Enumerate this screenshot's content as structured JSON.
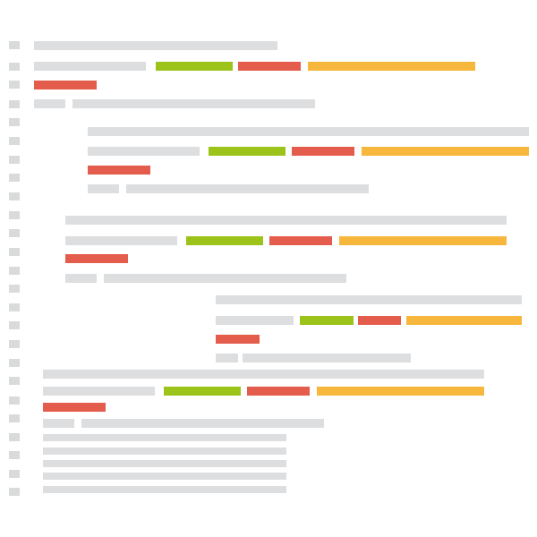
{
  "colors": {
    "gray": "#dddedf",
    "green": "#9bc31a",
    "red": "#e45c4b",
    "orange": "#f6b73c",
    "gutter": "#d9dadb"
  },
  "legend": [],
  "gutter": {
    "icon": "line-marker-icon",
    "count": 25
  },
  "blocks": [
    {
      "id": "block-1",
      "role": "code-block",
      "lines": [
        {
          "role": "text-line",
          "segments": [
            {
              "color": "gray"
            }
          ]
        },
        {
          "role": "token-line",
          "segments": [
            {
              "color": "gray"
            },
            {
              "color": "green"
            },
            {
              "color": "red"
            },
            {
              "color": "orange"
            }
          ]
        },
        {
          "role": "token-line",
          "segments": [
            {
              "color": "red"
            }
          ]
        },
        {
          "role": "text-line",
          "segments": [
            {
              "color": "gray"
            },
            {
              "color": "gray"
            }
          ]
        }
      ]
    },
    {
      "id": "block-2",
      "role": "nested-code-block",
      "lines": [
        {
          "role": "text-line",
          "segments": [
            {
              "color": "gray"
            }
          ]
        },
        {
          "role": "token-line",
          "segments": [
            {
              "color": "gray"
            },
            {
              "color": "green"
            },
            {
              "color": "red"
            },
            {
              "color": "orange"
            }
          ]
        },
        {
          "role": "token-line",
          "segments": [
            {
              "color": "red"
            }
          ]
        },
        {
          "role": "text-line",
          "segments": [
            {
              "color": "gray"
            },
            {
              "color": "gray"
            }
          ]
        }
      ]
    },
    {
      "id": "block-3",
      "role": "indented-code-block",
      "lines": [
        {
          "role": "text-line",
          "segments": [
            {
              "color": "gray"
            }
          ]
        },
        {
          "role": "token-line",
          "segments": [
            {
              "color": "gray"
            },
            {
              "color": "green"
            },
            {
              "color": "red"
            },
            {
              "color": "orange"
            }
          ]
        },
        {
          "role": "token-line",
          "segments": [
            {
              "color": "red"
            }
          ]
        },
        {
          "role": "text-line",
          "segments": [
            {
              "color": "gray"
            },
            {
              "color": "gray"
            }
          ]
        }
      ]
    },
    {
      "id": "block-4",
      "role": "deep-nested-code-block",
      "lines": [
        {
          "role": "text-line",
          "segments": [
            {
              "color": "gray"
            }
          ]
        },
        {
          "role": "token-line",
          "segments": [
            {
              "color": "gray"
            },
            {
              "color": "green"
            },
            {
              "color": "red"
            },
            {
              "color": "orange"
            }
          ]
        },
        {
          "role": "token-line",
          "segments": [
            {
              "color": "red"
            }
          ]
        },
        {
          "role": "text-line",
          "segments": [
            {
              "color": "gray"
            },
            {
              "color": "gray"
            }
          ]
        }
      ]
    },
    {
      "id": "block-5",
      "role": "code-block",
      "lines": [
        {
          "role": "text-line",
          "segments": [
            {
              "color": "gray"
            }
          ]
        },
        {
          "role": "token-line",
          "segments": [
            {
              "color": "gray"
            },
            {
              "color": "green"
            },
            {
              "color": "red"
            },
            {
              "color": "orange"
            }
          ]
        },
        {
          "role": "token-line",
          "segments": [
            {
              "color": "red"
            }
          ]
        },
        {
          "role": "text-line",
          "segments": [
            {
              "color": "gray"
            },
            {
              "color": "gray"
            }
          ]
        },
        {
          "role": "text-line",
          "segments": [
            {
              "color": "gray"
            }
          ]
        },
        {
          "role": "text-line",
          "segments": [
            {
              "color": "gray"
            }
          ]
        },
        {
          "role": "text-line",
          "segments": [
            {
              "color": "gray"
            }
          ]
        },
        {
          "role": "text-line",
          "segments": [
            {
              "color": "gray"
            }
          ]
        },
        {
          "role": "text-line",
          "segments": [
            {
              "color": "gray"
            }
          ]
        }
      ]
    }
  ]
}
